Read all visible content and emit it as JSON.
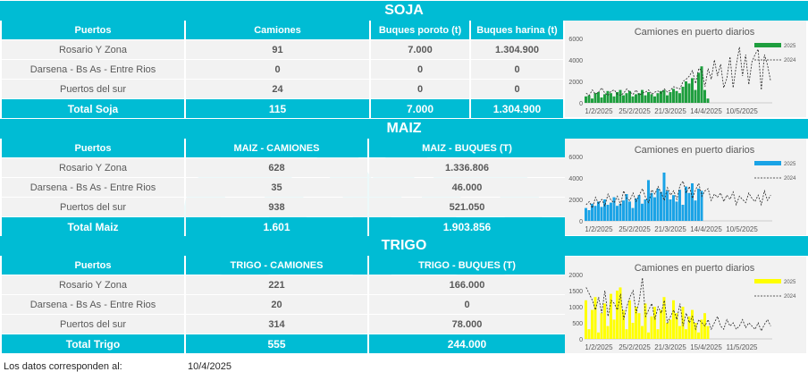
{
  "soja": {
    "title": "SOJA",
    "headers": [
      "Puertos",
      "Camiones",
      "Buques poroto (t)",
      "Buques harina (t)"
    ],
    "rows": [
      {
        "puerto": "Rosario Y Zona",
        "camiones": "91",
        "poroto": "7.000",
        "harina": "1.304.900"
      },
      {
        "puerto": "Darsena - Bs As - Entre Rios",
        "camiones": "0",
        "poroto": "0",
        "harina": "0"
      },
      {
        "puerto": "Puertos del sur",
        "camiones": "24",
        "poroto": "0",
        "harina": "0"
      }
    ],
    "total": {
      "label": "Total Soja",
      "camiones": "115",
      "poroto": "7.000",
      "harina": "1.304.900"
    }
  },
  "maiz": {
    "title": "MAIZ",
    "headers": [
      "Puertos",
      "MAIZ - CAMIONES",
      "MAIZ - BUQUES (T)"
    ],
    "rows": [
      {
        "puerto": "Rosario Y Zona",
        "camiones": "628",
        "buques": "1.336.806"
      },
      {
        "puerto": "Darsena - Bs As - Entre Rios",
        "camiones": "35",
        "buques": "46.000"
      },
      {
        "puerto": "Puertos del sur",
        "camiones": "938",
        "buques": "521.050"
      }
    ],
    "total": {
      "label": "Total Maiz",
      "camiones": "1.601",
      "buques": "1.903.856"
    }
  },
  "trigo": {
    "title": "TRIGO",
    "headers": [
      "Puertos",
      "TRIGO - CAMIONES",
      "TRIGO - BUQUES (T)"
    ],
    "rows": [
      {
        "puerto": "Rosario Y Zona",
        "camiones": "221",
        "buques": "166.000"
      },
      {
        "puerto": "Darsena - Bs As - Entre Rios",
        "camiones": "20",
        "buques": "0"
      },
      {
        "puerto": "Puertos del sur",
        "camiones": "314",
        "buques": "78.000"
      }
    ],
    "total": {
      "label": "Total Trigo",
      "camiones": "555",
      "buques": "244.000"
    }
  },
  "footer": {
    "label": "Los datos corresponden al:",
    "date": "10/4/2025"
  },
  "chart_data": [
    {
      "type": "bar",
      "title": "Camiones en puerto diarios",
      "color": "#1e9e3e",
      "ylim": [
        0,
        6000
      ],
      "yticks": [
        "0",
        "2000",
        "4000",
        "6000"
      ],
      "xticks": [
        "1/2/2025",
        "25/2/2025",
        "21/3/2025",
        "14/4/2025",
        "10/5/2025"
      ],
      "legend": [
        "2025",
        "2024"
      ],
      "series": [
        {
          "name": "2025",
          "values": [
            600,
            700,
            400,
            900,
            1000,
            500,
            800,
            1100,
            900,
            600,
            1000,
            1200,
            700,
            900,
            1100,
            600,
            800,
            900,
            1200,
            700,
            1000,
            800,
            600,
            900,
            1100,
            1200,
            700,
            1000,
            1300,
            1100,
            900,
            1500,
            2000,
            1800,
            2300,
            1200,
            2800,
            3400,
            1200,
            400
          ]
        },
        {
          "name": "2024",
          "values": [
            900,
            700,
            1200,
            800,
            1000,
            1400,
            900,
            700,
            1100,
            1200,
            800,
            700,
            900,
            1300,
            1000,
            800,
            1200,
            700,
            900,
            1000,
            1200,
            800,
            1000,
            1100,
            900,
            1300,
            1000,
            1200,
            1500,
            1400,
            1300,
            2000,
            2200,
            2500,
            3000,
            1800,
            3200,
            3000,
            1500,
            3200,
            2200,
            4000,
            2500,
            3600,
            1400,
            2300,
            4300,
            1400,
            3500,
            5200,
            2500,
            4500,
            1700,
            3800,
            4500,
            5000,
            1200,
            4500,
            3500,
            2000
          ]
        }
      ]
    },
    {
      "type": "bar",
      "title": "Camiones en puerto diarios",
      "color": "#1aa3e6",
      "ylim": [
        0,
        6000
      ],
      "yticks": [
        "0",
        "2000",
        "4000",
        "6000"
      ],
      "xticks": [
        "1/2/2025",
        "25/2/2025",
        "21/3/2025",
        "14/4/2025",
        "10/5/2025"
      ],
      "legend": [
        "2025",
        "2024"
      ],
      "series": [
        {
          "name": "2025",
          "values": [
            1200,
            1000,
            1600,
            1400,
            1800,
            1300,
            2000,
            1500,
            1700,
            2200,
            1400,
            1600,
            1900,
            2500,
            1800,
            1200,
            2100,
            2400,
            1600,
            2000,
            3800,
            2600,
            2200,
            3000,
            2700,
            4500,
            2800,
            2000,
            2400,
            1800,
            2900,
            1500,
            3200,
            2600,
            3500,
            1900,
            3000,
            2800
          ]
        },
        {
          "name": "2024",
          "values": [
            1500,
            1800,
            1200,
            2200,
            1600,
            2000,
            1400,
            2500,
            1900,
            1700,
            2300,
            1500,
            2800,
            2100,
            1900,
            2600,
            1800,
            2400,
            3000,
            2200,
            1700,
            2900,
            2500,
            3200,
            2600,
            1900,
            3100,
            2400,
            2800,
            2000,
            3300,
            3700,
            2600,
            3200,
            2100,
            2900,
            3500,
            2300,
            2800,
            3000,
            1900,
            2500,
            2200,
            2600,
            1800,
            2400,
            2000,
            2700,
            1500,
            2300,
            2000,
            1700,
            2600,
            2100,
            1800,
            2400,
            1500,
            2800,
            1900,
            2400
          ]
        }
      ]
    },
    {
      "type": "bar",
      "title": "Camiones en puerto diarios",
      "color": "#ffff00",
      "ylim": [
        0,
        2000
      ],
      "yticks": [
        "0",
        "500",
        "1000",
        "1500",
        "2000"
      ],
      "xticks": [
        "1/2/2025",
        "25/2/2025",
        "21/3/2025",
        "15/4/2025",
        "11/5/2025"
      ],
      "legend": [
        "2025",
        "2024"
      ],
      "series": [
        {
          "name": "2025",
          "values": [
            1200,
            300,
            900,
            1300,
            200,
            800,
            1100,
            400,
            1400,
            600,
            1500,
            1600,
            900,
            300,
            1200,
            500,
            1000,
            800,
            400,
            1100,
            200,
            700,
            1000,
            300,
            900,
            1300,
            500,
            600,
            1200,
            800,
            400,
            1000,
            300,
            700,
            900,
            500,
            200,
            600,
            800,
            400
          ]
        },
        {
          "name": "2024",
          "values": [
            1600,
            1400,
            1200,
            900,
            1300,
            800,
            1500,
            700,
            1200,
            1100,
            900,
            1400,
            600,
            1000,
            1300,
            1500,
            800,
            1200,
            1900,
            700,
            900,
            1100,
            600,
            1000,
            800,
            1200,
            500,
            700,
            900,
            600,
            1100,
            400,
            800,
            500,
            700,
            300,
            600,
            500,
            400,
            600,
            300,
            500,
            700,
            400,
            300,
            600,
            400,
            500,
            300,
            400,
            600,
            350,
            500,
            400,
            300,
            500,
            250,
            450,
            600,
            400
          ]
        }
      ]
    }
  ]
}
